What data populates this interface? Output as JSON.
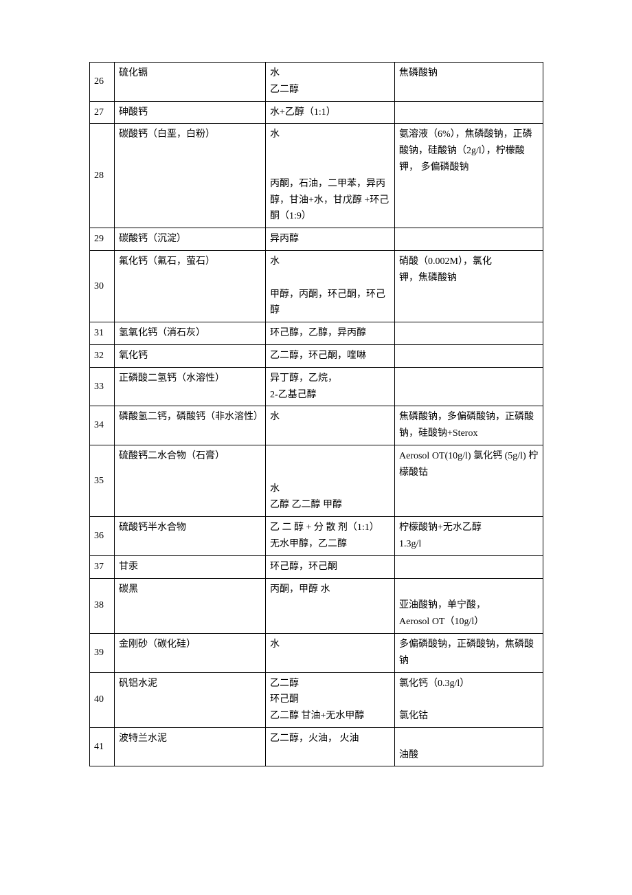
{
  "rows": [
    {
      "n": "26",
      "material": "硫化镉",
      "solvent": "水\n乙二醇",
      "dispersant": "焦磷酸钠"
    },
    {
      "n": "27",
      "material": "砷酸钙",
      "solvent": "水+乙醇（1:1）",
      "dispersant": ""
    },
    {
      "n": "28",
      "material": "碳酸钙（白垩，白粉）",
      "solvent": "水\n\n\n丙酮，石油，二甲苯，异丙醇，甘油+水，甘戊醇 +环己酮（1:9）",
      "dispersant": "氨溶液（6%），焦磷酸钠，正磷酸钠，硅酸钠（2g/l），柠檬酸钾，    多偏磷酸钠"
    },
    {
      "n": "29",
      "material": "碳酸钙（沉淀）",
      "solvent": "异丙醇",
      "dispersant": ""
    },
    {
      "n": "30",
      "material": "氟化钙（氟石，萤石）",
      "solvent": "水\n\n甲醇，丙酮，环己酮，环己醇",
      "dispersant": " 硝酸（0.002M），氯化\n钾，焦磷酸钠"
    },
    {
      "n": "31",
      "material": "氢氧化钙（消石灰）",
      "solvent": "环己醇，乙醇，异丙醇",
      "dispersant": ""
    },
    {
      "n": "32",
      "material": "氧化钙",
      "solvent": "乙二醇，环己酮，喹啉",
      "dispersant": ""
    },
    {
      "n": "33",
      "material": "正磷酸二氢钙（水溶性）",
      "solvent": "异丁醇，乙烷，\n2-乙基己醇",
      "dispersant": ""
    },
    {
      "n": "34",
      "material": "磷酸氢二钙，磷酸钙（非水溶性）",
      "solvent": "水",
      "dispersant": "焦磷酸钠，多偏磷酸钠，正磷酸钠，硅酸钠+Sterox"
    },
    {
      "n": "35",
      "material": "硫酸钙二水合物（石膏）",
      "solvent": "\n\n水\n乙醇  乙二醇  甲醇",
      "dispersant": "Aerosol OT(10g/l) 氯化钙 (5g/l)  柠檬酸钴"
    },
    {
      "n": "36",
      "material": "硫酸钙半水合物",
      "solvent": "乙 二 醇 + 分 散 剂（1:1）\n无水甲醇，乙二醇",
      "dispersant": "柠檬酸钠+无水乙醇\n1.3g/l"
    },
    {
      "n": "37",
      "material": "甘汞",
      "solvent": "环己醇，环己酮",
      "dispersant": ""
    },
    {
      "n": "38",
      "material": "碳黑",
      "solvent": "丙酮，甲醇  水",
      "dispersant": "\n亚油酸钠，单宁酸，\nAerosol OT（10g/l）"
    },
    {
      "n": "39",
      "material": "金刚砂（碳化硅）",
      "solvent": "水",
      "dispersant": "多偏磷酸钠，正磷酸钠，焦磷酸钠"
    },
    {
      "n": "40",
      "material": "矾铝水泥",
      "solvent": "乙二醇\n环己酮\n乙二醇  甘油+无水甲醇",
      "dispersant": "氯化钙（0.3g/l）\n\n氯化钴"
    },
    {
      "n": "41",
      "material": "波特兰水泥",
      "solvent": "乙二醇，火油，    火油",
      "dispersant": "\n油酸"
    }
  ]
}
